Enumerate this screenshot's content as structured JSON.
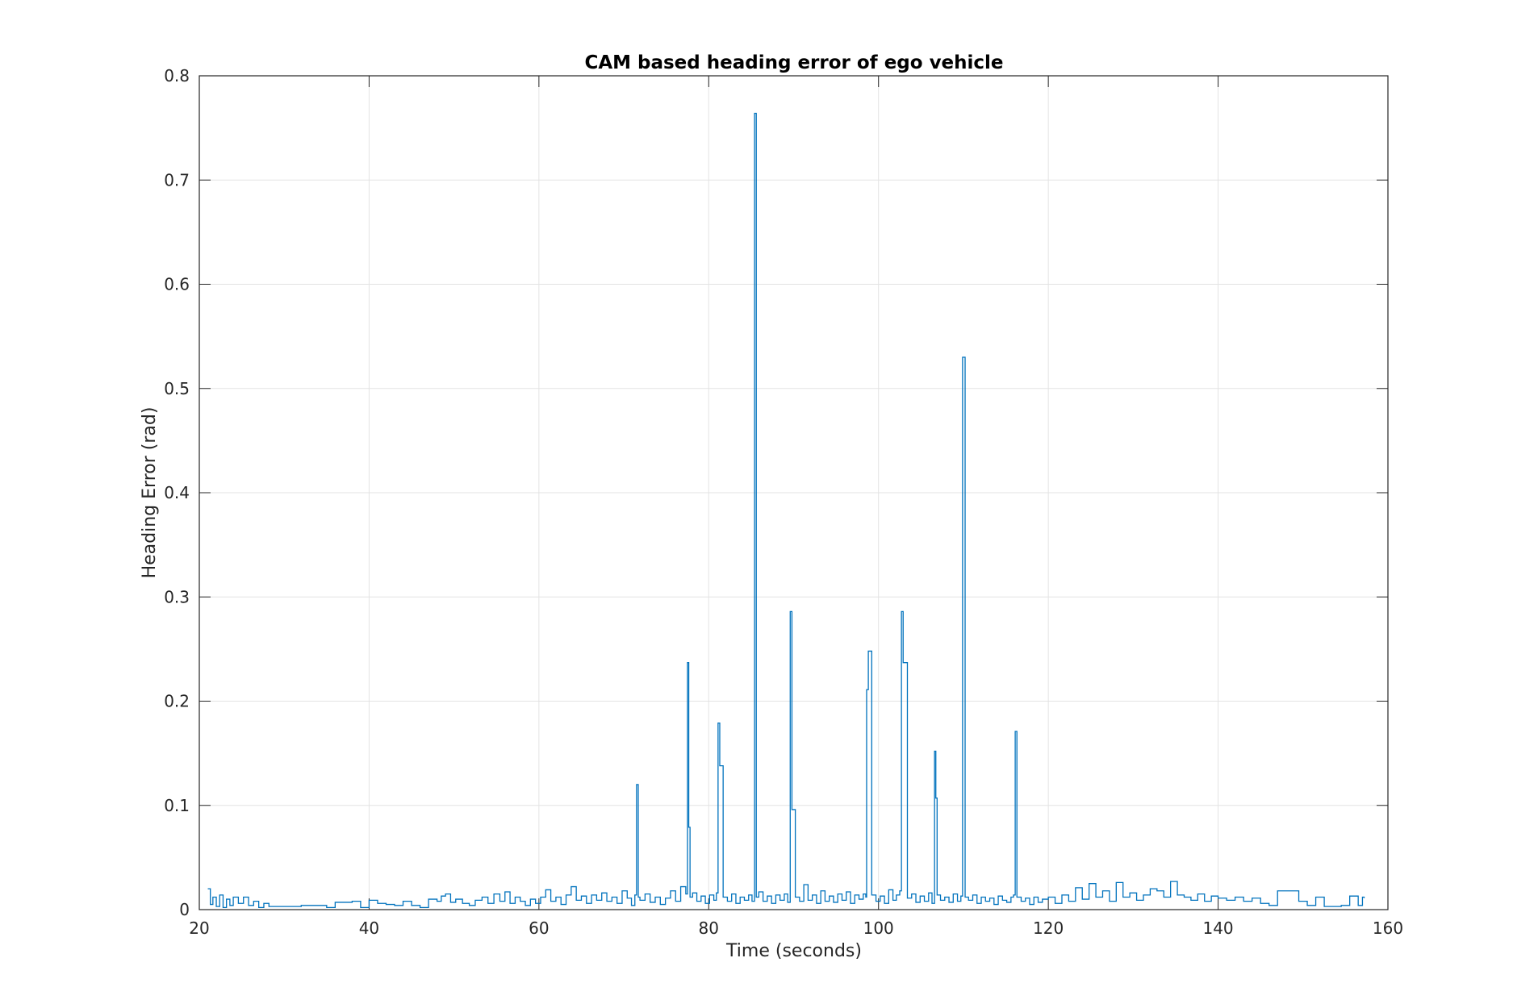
{
  "chart_data": {
    "type": "line",
    "title": "CAM based heading error of ego vehicle",
    "xlabel": "Time (seconds)",
    "ylabel": "Heading Error (rad)",
    "xlim": [
      20,
      160
    ],
    "ylim": [
      0,
      0.8
    ],
    "xticks": [
      20,
      40,
      60,
      80,
      100,
      120,
      140,
      160
    ],
    "yticks": [
      0,
      0.1,
      0.2,
      0.3,
      0.4,
      0.5,
      0.6,
      0.7,
      0.8
    ],
    "xtick_labels": [
      "20",
      "40",
      "60",
      "80",
      "100",
      "120",
      "140",
      "160"
    ],
    "ytick_labels": [
      "0",
      "0.1",
      "0.2",
      "0.3",
      "0.4",
      "0.5",
      "0.6",
      "0.7",
      "0.8"
    ],
    "grid": true,
    "line_style": "step",
    "colors": {
      "series": "#0072BD",
      "grid": "#e3e3e3",
      "axes": "#262626"
    },
    "series": [
      {
        "x": [
          21.0,
          21.3,
          21.6,
          22.0,
          22.4,
          22.8,
          23.2,
          23.6,
          24.0,
          24.6,
          25.2,
          25.8,
          26.4,
          27.0,
          27.6,
          28.2,
          29.0,
          30.0,
          31.0,
          32.0,
          33.0,
          34.0,
          35.0,
          36.0,
          37.0,
          38.0,
          39.0,
          40.0,
          41.0,
          42.0,
          43.0,
          44.0,
          45.0,
          46.0,
          47.0,
          48.0,
          48.5,
          49.0,
          49.6,
          50.2,
          51.0,
          51.8,
          52.5,
          53.3,
          54.0,
          54.7,
          55.4,
          56.0,
          56.6,
          57.2,
          57.8,
          58.4,
          59.0,
          59.6,
          60.2,
          60.8,
          61.4,
          62.0,
          62.6,
          63.2,
          63.8,
          64.4,
          65.0,
          65.6,
          66.2,
          66.8,
          67.4,
          68.0,
          68.6,
          69.2,
          69.8,
          70.4,
          70.9,
          71.3,
          71.5,
          71.7,
          71.9,
          72.5,
          73.1,
          73.7,
          74.3,
          74.9,
          75.5,
          76.1,
          76.7,
          77.3,
          77.5,
          77.65,
          77.8,
          78.1,
          78.6,
          79.1,
          79.6,
          80.1,
          80.6,
          80.9,
          81.1,
          81.3,
          81.7,
          82.2,
          82.7,
          83.2,
          83.7,
          84.2,
          84.7,
          85.1,
          85.4,
          85.6,
          85.9,
          86.4,
          86.9,
          87.4,
          87.9,
          88.4,
          88.9,
          89.3,
          89.6,
          89.8,
          90.2,
          90.7,
          91.2,
          91.7,
          92.2,
          92.7,
          93.2,
          93.7,
          94.2,
          94.7,
          95.2,
          95.7,
          96.2,
          96.7,
          97.2,
          97.7,
          98.2,
          98.5,
          98.6,
          98.8,
          99.2,
          99.7,
          100.2,
          100.7,
          101.2,
          101.7,
          102.1,
          102.5,
          102.7,
          102.9,
          103.4,
          103.9,
          104.4,
          104.9,
          105.4,
          105.9,
          106.3,
          106.6,
          106.75,
          106.9,
          107.3,
          107.8,
          108.3,
          108.8,
          109.3,
          109.7,
          109.9,
          110.2,
          110.6,
          111.1,
          111.6,
          112.1,
          112.6,
          113.1,
          113.6,
          114.1,
          114.6,
          115.1,
          115.6,
          115.9,
          116.1,
          116.3,
          116.8,
          117.3,
          117.8,
          118.3,
          118.8,
          119.3,
          120.0,
          120.8,
          121.6,
          122.4,
          123.2,
          124.0,
          124.8,
          125.6,
          126.4,
          127.2,
          128.0,
          128.8,
          129.6,
          130.4,
          131.2,
          132.0,
          132.8,
          133.6,
          134.4,
          135.2,
          136.0,
          136.8,
          137.6,
          138.4,
          139.2,
          140.0,
          141.0,
          142.0,
          143.0,
          144.0,
          145.0,
          146.0,
          147.0,
          148.5,
          149.5,
          150.5,
          151.5,
          152.5,
          153.5,
          154.5,
          155.5,
          156.5,
          157.0,
          157.2
        ],
        "y": [
          0.02,
          0.005,
          0.012,
          0.003,
          0.014,
          0.002,
          0.01,
          0.004,
          0.012,
          0.006,
          0.012,
          0.004,
          0.008,
          0.002,
          0.006,
          0.003,
          0.003,
          0.003,
          0.003,
          0.004,
          0.004,
          0.004,
          0.002,
          0.007,
          0.007,
          0.008,
          0.002,
          0.009,
          0.006,
          0.005,
          0.004,
          0.008,
          0.004,
          0.002,
          0.01,
          0.008,
          0.013,
          0.015,
          0.007,
          0.01,
          0.006,
          0.004,
          0.009,
          0.012,
          0.006,
          0.015,
          0.008,
          0.017,
          0.006,
          0.012,
          0.008,
          0.004,
          0.01,
          0.006,
          0.012,
          0.019,
          0.008,
          0.012,
          0.005,
          0.014,
          0.022,
          0.009,
          0.013,
          0.006,
          0.014,
          0.009,
          0.016,
          0.008,
          0.012,
          0.006,
          0.018,
          0.011,
          0.004,
          0.014,
          0.12,
          0.012,
          0.009,
          0.015,
          0.007,
          0.012,
          0.005,
          0.011,
          0.018,
          0.008,
          0.022,
          0.015,
          0.237,
          0.079,
          0.012,
          0.016,
          0.008,
          0.013,
          0.006,
          0.014,
          0.009,
          0.016,
          0.179,
          0.138,
          0.012,
          0.008,
          0.015,
          0.006,
          0.012,
          0.009,
          0.014,
          0.008,
          0.764,
          0.012,
          0.017,
          0.008,
          0.013,
          0.006,
          0.014,
          0.009,
          0.015,
          0.007,
          0.286,
          0.096,
          0.012,
          0.008,
          0.024,
          0.009,
          0.014,
          0.006,
          0.018,
          0.008,
          0.013,
          0.007,
          0.015,
          0.009,
          0.017,
          0.006,
          0.014,
          0.01,
          0.015,
          0.012,
          0.211,
          0.248,
          0.014,
          0.008,
          0.013,
          0.006,
          0.019,
          0.009,
          0.014,
          0.018,
          0.286,
          0.237,
          0.011,
          0.015,
          0.007,
          0.013,
          0.008,
          0.016,
          0.006,
          0.152,
          0.107,
          0.014,
          0.009,
          0.012,
          0.007,
          0.015,
          0.008,
          0.013,
          0.53,
          0.012,
          0.009,
          0.014,
          0.006,
          0.012,
          0.008,
          0.011,
          0.005,
          0.013,
          0.009,
          0.007,
          0.012,
          0.014,
          0.171,
          0.012,
          0.008,
          0.011,
          0.005,
          0.012,
          0.007,
          0.01,
          0.012,
          0.006,
          0.014,
          0.008,
          0.021,
          0.01,
          0.025,
          0.012,
          0.018,
          0.008,
          0.026,
          0.012,
          0.016,
          0.009,
          0.014,
          0.02,
          0.018,
          0.012,
          0.027,
          0.014,
          0.012,
          0.009,
          0.015,
          0.008,
          0.013,
          0.011,
          0.009,
          0.012,
          0.008,
          0.011,
          0.006,
          0.004,
          0.018,
          0.018,
          0.008,
          0.004,
          0.012,
          0.003,
          0.003,
          0.004,
          0.013,
          0.004,
          0.012,
          0.011
        ]
      }
    ]
  }
}
